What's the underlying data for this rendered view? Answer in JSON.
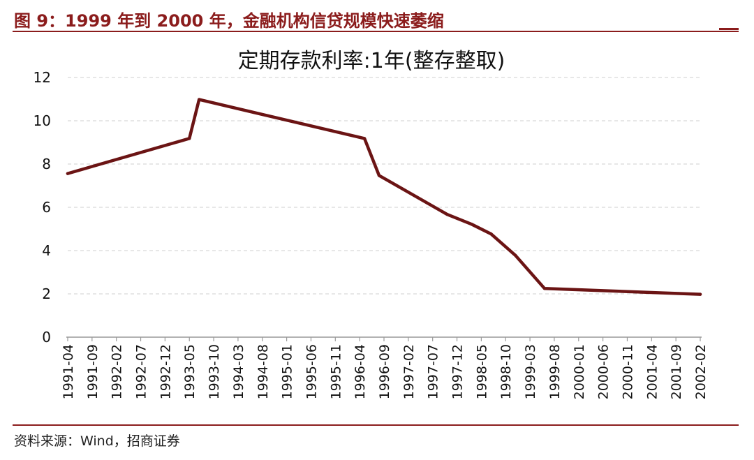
{
  "figure": {
    "title": "图 9：1999 年到 2000 年，金融机构信贷规模快速萎缩",
    "source": "资料来源：Wind，招商证券"
  },
  "colors": {
    "accent": "#8b1c1c",
    "line": "#6b1414",
    "grid": "#cfcfcf"
  },
  "chart_data": {
    "type": "line",
    "title": "定期存款利率:1年(整存整取)",
    "xlabel": "",
    "ylabel": "",
    "ylim": [
      0,
      12
    ],
    "yticks": [
      0,
      2,
      4,
      6,
      8,
      10,
      12
    ],
    "grid": "horizontal-dashed",
    "legend": "none",
    "x_tick_labels": [
      "1991-04",
      "1991-09",
      "1992-02",
      "1992-07",
      "1992-12",
      "1993-05",
      "1993-10",
      "1994-03",
      "1994-08",
      "1995-01",
      "1995-06",
      "1995-11",
      "1996-04",
      "1996-09",
      "1997-02",
      "1997-07",
      "1997-12",
      "1998-05",
      "1998-10",
      "1999-03",
      "1999-08",
      "2000-01",
      "2000-06",
      "2000-11",
      "2001-04",
      "2001-09",
      "2002-02"
    ],
    "series": [
      {
        "points": [
          {
            "x": "1991-04",
            "y": 7.56
          },
          {
            "x": "1993-05",
            "y": 9.18
          },
          {
            "x": "1993-07",
            "y": 10.98
          },
          {
            "x": "1996-05",
            "y": 9.18
          },
          {
            "x": "1996-08",
            "y": 7.47
          },
          {
            "x": "1997-10",
            "y": 5.67
          },
          {
            "x": "1998-03",
            "y": 5.22
          },
          {
            "x": "1998-07",
            "y": 4.77
          },
          {
            "x": "1998-12",
            "y": 3.78
          },
          {
            "x": "1999-06",
            "y": 2.25
          },
          {
            "x": "2002-02",
            "y": 1.98
          }
        ]
      }
    ]
  }
}
